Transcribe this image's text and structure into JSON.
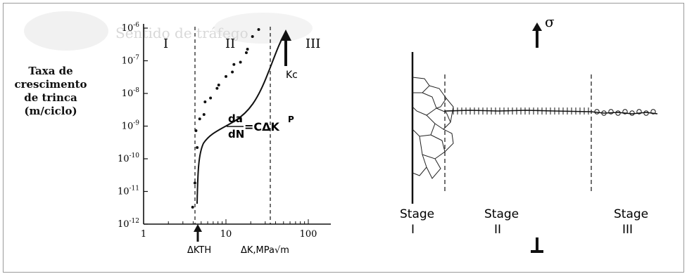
{
  "left_panel": {
    "y_axis_label_lines": [
      "Taxa de",
      "crescimento",
      "de trinca",
      "(m/ciclo)"
    ],
    "y_tick_labels": [
      "10-6",
      "10-7",
      "10-8",
      "10-9",
      "10-10",
      "10-11",
      "10-12"
    ],
    "x_tick_labels": [
      "1",
      "10",
      "100"
    ],
    "region_labels": [
      "I",
      "II",
      "III"
    ],
    "delta_k_th_label": "ΔKTH",
    "x_axis_label": "ΔK,MPa√m",
    "kc_label": "Kc",
    "equation": {
      "numerator": "da",
      "denominator": "dN",
      "rhs": "=CΔK",
      "exponent": "P"
    },
    "background_ghost_text": "Sentido de tráfego"
  },
  "right_panel": {
    "sigma_label": "σ",
    "stage_labels": [
      {
        "word": "Stage",
        "numeral": "I"
      },
      {
        "word": "Stage",
        "numeral": "II"
      },
      {
        "word": "Stage",
        "numeral": "III"
      }
    ]
  },
  "chart_data": {
    "type": "scatter",
    "xscale": "log",
    "yscale": "log",
    "xlim": [
      1,
      100
    ],
    "ylim": [
      1e-12,
      1e-06
    ],
    "x": [
      4.1,
      4.2,
      4.3,
      4.5,
      4.8,
      5.2,
      5.8,
      6.5,
      7.5,
      8.5,
      10,
      11.5,
      13,
      15,
      17,
      19,
      21,
      24
    ],
    "y": [
      3e-12,
      2e-11,
      2e-10,
      8e-10,
      1.5e-09,
      2.5e-09,
      5e-09,
      8e-09,
      1.3e-08,
      2e-08,
      3e-08,
      5e-08,
      7e-08,
      1e-07,
      1.6e-07,
      2.5e-07,
      5e-07,
      1e-06
    ]
  }
}
